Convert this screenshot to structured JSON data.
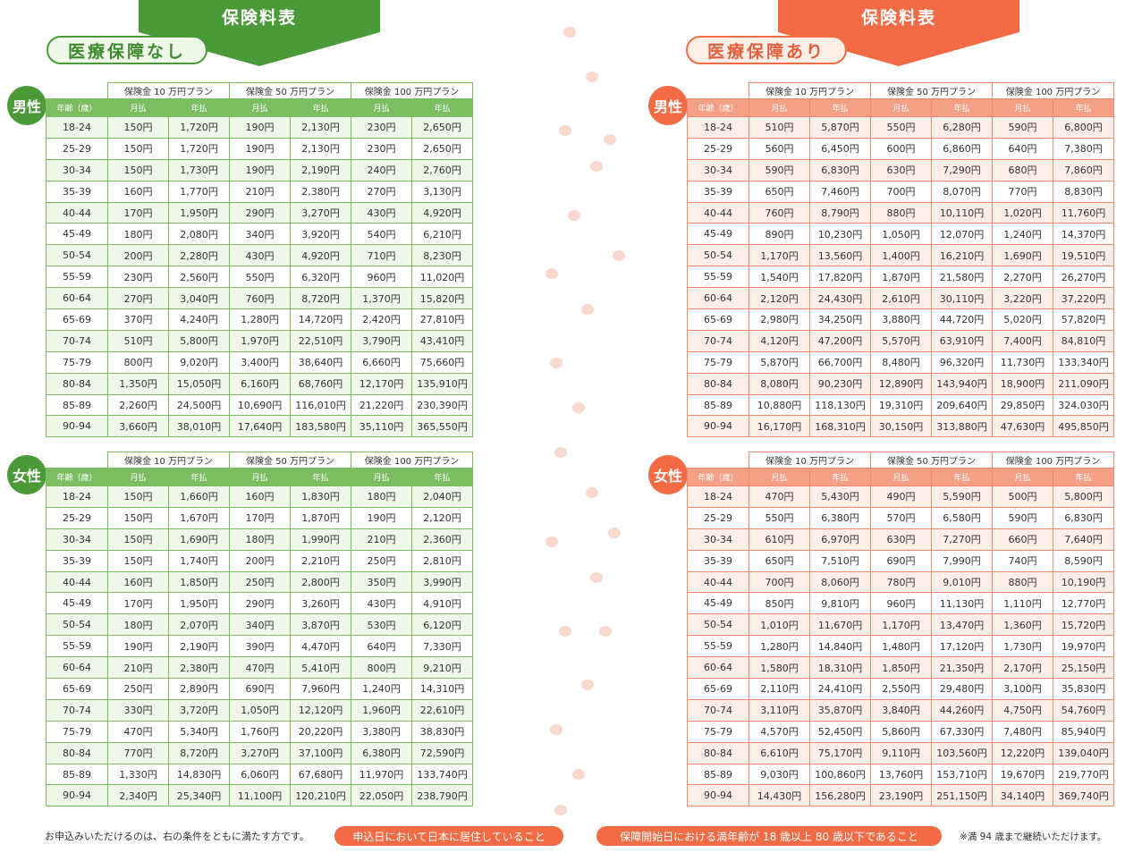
{
  "panels": [
    {
      "title": "保険料表",
      "subtitle": "医療保障なし",
      "tables": [
        {
          "label": "男性",
          "plans": [
            "保険金 10 万円プラン",
            "保険金 50 万円プラン",
            "保険金 100 万円プラン"
          ],
          "header": [
            "年齢（歳）",
            "月払",
            "年払",
            "月払",
            "年払",
            "月払",
            "年払"
          ],
          "rows": [
            [
              "18-24",
              "150円",
              "1,720円",
              "190円",
              "2,130円",
              "230円",
              "2,650円"
            ],
            [
              "25-29",
              "150円",
              "1,720円",
              "190円",
              "2,130円",
              "230円",
              "2,650円"
            ],
            [
              "30-34",
              "150円",
              "1,730円",
              "190円",
              "2,190円",
              "240円",
              "2,760円"
            ],
            [
              "35-39",
              "160円",
              "1,770円",
              "210円",
              "2,380円",
              "270円",
              "3,130円"
            ],
            [
              "40-44",
              "170円",
              "1,950円",
              "290円",
              "3,270円",
              "430円",
              "4,920円"
            ],
            [
              "45-49",
              "180円",
              "2,080円",
              "340円",
              "3,920円",
              "540円",
              "6,210円"
            ],
            [
              "50-54",
              "200円",
              "2,280円",
              "430円",
              "4,920円",
              "710円",
              "8,230円"
            ],
            [
              "55-59",
              "230円",
              "2,560円",
              "550円",
              "6,320円",
              "960円",
              "11,020円"
            ],
            [
              "60-64",
              "270円",
              "3,040円",
              "760円",
              "8,720円",
              "1,370円",
              "15,820円"
            ],
            [
              "65-69",
              "370円",
              "4,240円",
              "1,280円",
              "14,720円",
              "2,420円",
              "27,810円"
            ],
            [
              "70-74",
              "510円",
              "5,800円",
              "1,970円",
              "22,510円",
              "3,790円",
              "43,410円"
            ],
            [
              "75-79",
              "800円",
              "9,020円",
              "3,400円",
              "38,640円",
              "6,660円",
              "75,660円"
            ],
            [
              "80-84",
              "1,350円",
              "15,050円",
              "6,160円",
              "68,760円",
              "12,170円",
              "135,910円"
            ],
            [
              "85-89",
              "2,260円",
              "24,500円",
              "10,690円",
              "116,010円",
              "21,220円",
              "230,390円"
            ],
            [
              "90-94",
              "3,660円",
              "38,010円",
              "17,640円",
              "183,580円",
              "35,110円",
              "365,550円"
            ]
          ]
        },
        {
          "label": "女性",
          "plans": [
            "保険金 10 万円プラン",
            "保険金 50 万円プラン",
            "保険金 100 万円プラン"
          ],
          "header": [
            "年齢（歳）",
            "月払",
            "年払",
            "月払",
            "年払",
            "月払",
            "年払"
          ],
          "rows": [
            [
              "18-24",
              "150円",
              "1,660円",
              "160円",
              "1,830円",
              "180円",
              "2,040円"
            ],
            [
              "25-29",
              "150円",
              "1,670円",
              "170円",
              "1,870円",
              "190円",
              "2,120円"
            ],
            [
              "30-34",
              "150円",
              "1,690円",
              "180円",
              "1,990円",
              "210円",
              "2,360円"
            ],
            [
              "35-39",
              "150円",
              "1,740円",
              "200円",
              "2,210円",
              "250円",
              "2,810円"
            ],
            [
              "40-44",
              "160円",
              "1,850円",
              "250円",
              "2,800円",
              "350円",
              "3,990円"
            ],
            [
              "45-49",
              "170円",
              "1,950円",
              "290円",
              "3,260円",
              "430円",
              "4,910円"
            ],
            [
              "50-54",
              "180円",
              "2,070円",
              "340円",
              "3,870円",
              "530円",
              "6,120円"
            ],
            [
              "55-59",
              "190円",
              "2,190円",
              "390円",
              "4,470円",
              "640円",
              "7,330円"
            ],
            [
              "60-64",
              "210円",
              "2,380円",
              "470円",
              "5,410円",
              "800円",
              "9,210円"
            ],
            [
              "65-69",
              "250円",
              "2,890円",
              "690円",
              "7,960円",
              "1,240円",
              "14,310円"
            ],
            [
              "70-74",
              "330円",
              "3,720円",
              "1,050円",
              "12,120円",
              "1,960円",
              "22,610円"
            ],
            [
              "75-79",
              "470円",
              "5,340円",
              "1,760円",
              "20,220円",
              "3,380円",
              "38,830円"
            ],
            [
              "80-84",
              "770円",
              "8,720円",
              "3,270円",
              "37,100円",
              "6,380円",
              "72,590円"
            ],
            [
              "85-89",
              "1,330円",
              "14,830円",
              "6,060円",
              "67,680円",
              "11,970円",
              "133,740円"
            ],
            [
              "90-94",
              "2,340円",
              "25,340円",
              "11,100円",
              "120,210円",
              "22,050円",
              "238,790円"
            ]
          ]
        }
      ]
    },
    {
      "title": "保険料表",
      "subtitle": "医療保障あり",
      "tables": [
        {
          "label": "男性",
          "plans": [
            "保険金 10 万円プラン",
            "保険金 50 万円プラン",
            "保険金 100 万円プラン"
          ],
          "header": [
            "年齢（歳）",
            "月払",
            "年払",
            "月払",
            "年払",
            "月払",
            "年払"
          ],
          "rows": [
            [
              "18-24",
              "510円",
              "5,870円",
              "550円",
              "6,280円",
              "590円",
              "6,800円"
            ],
            [
              "25-29",
              "560円",
              "6,450円",
              "600円",
              "6,860円",
              "640円",
              "7,380円"
            ],
            [
              "30-34",
              "590円",
              "6,830円",
              "630円",
              "7,290円",
              "680円",
              "7,860円"
            ],
            [
              "35-39",
              "650円",
              "7,460円",
              "700円",
              "8,070円",
              "770円",
              "8,830円"
            ],
            [
              "40-44",
              "760円",
              "8,790円",
              "880円",
              "10,110円",
              "1,020円",
              "11,760円"
            ],
            [
              "45-49",
              "890円",
              "10,230円",
              "1,050円",
              "12,070円",
              "1,240円",
              "14,370円"
            ],
            [
              "50-54",
              "1,170円",
              "13,560円",
              "1,400円",
              "16,210円",
              "1,690円",
              "19,510円"
            ],
            [
              "55-59",
              "1,540円",
              "17,820円",
              "1,870円",
              "21,580円",
              "2,270円",
              "26,270円"
            ],
            [
              "60-64",
              "2,120円",
              "24,430円",
              "2,610円",
              "30,110円",
              "3,220円",
              "37,220円"
            ],
            [
              "65-69",
              "2,980円",
              "34,250円",
              "3,880円",
              "44,720円",
              "5,020円",
              "57,820円"
            ],
            [
              "70-74",
              "4,120円",
              "47,200円",
              "5,570円",
              "63,910円",
              "7,400円",
              "84,810円"
            ],
            [
              "75-79",
              "5,870円",
              "66,700円",
              "8,480円",
              "96,320円",
              "11,730円",
              "133,340円"
            ],
            [
              "80-84",
              "8,080円",
              "90,230円",
              "12,890円",
              "143,940円",
              "18,900円",
              "211,090円"
            ],
            [
              "85-89",
              "10,880円",
              "118,130円",
              "19,310円",
              "209,640円",
              "29,850円",
              "324,030円"
            ],
            [
              "90-94",
              "16,170円",
              "168,310円",
              "30,150円",
              "313,880円",
              "47,630円",
              "495,850円"
            ]
          ]
        },
        {
          "label": "女性",
          "plans": [
            "保険金 10 万円プラン",
            "保険金 50 万円プラン",
            "保険金 100 万円プラン"
          ],
          "header": [
            "年齢（歳）",
            "月払",
            "年払",
            "月払",
            "年払",
            "月払",
            "年払"
          ],
          "rows": [
            [
              "18-24",
              "470円",
              "5,430円",
              "490円",
              "5,590円",
              "500円",
              "5,800円"
            ],
            [
              "25-29",
              "550円",
              "6,380円",
              "570円",
              "6,580円",
              "590円",
              "6,830円"
            ],
            [
              "30-34",
              "610円",
              "6,970円",
              "630円",
              "7,270円",
              "660円",
              "7,640円"
            ],
            [
              "35-39",
              "650円",
              "7,510円",
              "690円",
              "7,990円",
              "740円",
              "8,590円"
            ],
            [
              "40-44",
              "700円",
              "8,060円",
              "780円",
              "9,010円",
              "880円",
              "10,190円"
            ],
            [
              "45-49",
              "850円",
              "9,810円",
              "960円",
              "11,130円",
              "1,110円",
              "12,770円"
            ],
            [
              "50-54",
              "1,010円",
              "11,670円",
              "1,170円",
              "13,470円",
              "1,360円",
              "15,720円"
            ],
            [
              "55-59",
              "1,280円",
              "14,840円",
              "1,480円",
              "17,120円",
              "1,730円",
              "19,970円"
            ],
            [
              "60-64",
              "1,580円",
              "18,310円",
              "1,850円",
              "21,350円",
              "2,170円",
              "25,150円"
            ],
            [
              "65-69",
              "2,110円",
              "24,410円",
              "2,550円",
              "29,480円",
              "3,100円",
              "35,830円"
            ],
            [
              "70-74",
              "3,110円",
              "35,870円",
              "3,840円",
              "44,260円",
              "4,750円",
              "54,760円"
            ],
            [
              "75-79",
              "4,570円",
              "52,450円",
              "5,860円",
              "67,330円",
              "7,480円",
              "85,940円"
            ],
            [
              "80-84",
              "6,610円",
              "75,170円",
              "9,110円",
              "103,560円",
              "12,220円",
              "139,040円"
            ],
            [
              "85-89",
              "9,030円",
              "100,860円",
              "13,760円",
              "153,710円",
              "19,670円",
              "219,770円"
            ],
            [
              "90-94",
              "14,430円",
              "156,280円",
              "23,190円",
              "251,150円",
              "34,140円",
              "369,740円"
            ]
          ]
        }
      ]
    }
  ],
  "footer": {
    "intro": "お申込みいただけるのは、右の条件をともに満たす方です。",
    "conditions": [
      "申込日において日本に居住していること",
      "保障開始日における満年齢が 18 歳以上 80 歳以下であること"
    ],
    "note": "※満 94 歳まで継続いただけます。"
  }
}
